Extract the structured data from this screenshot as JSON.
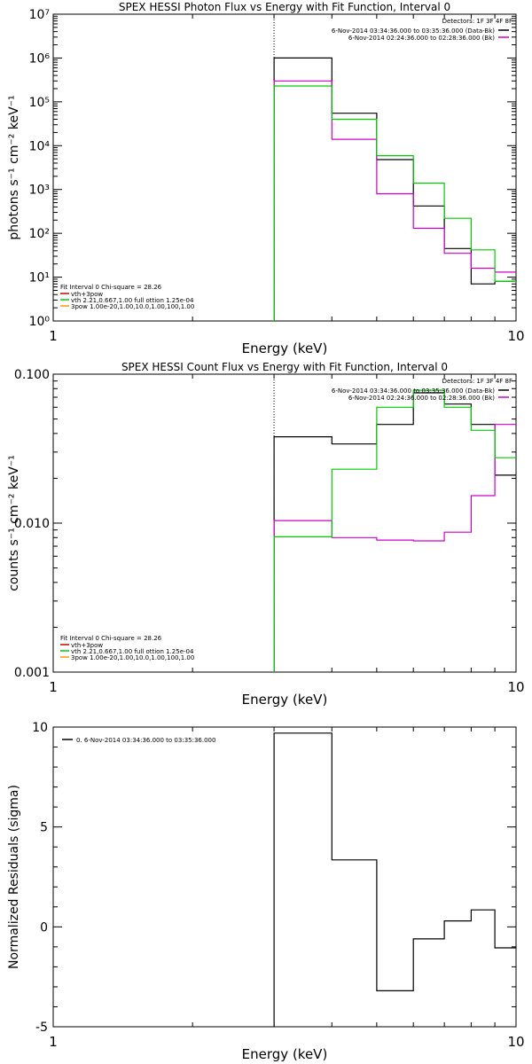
{
  "chart_data": [
    {
      "type": "line",
      "title": "SPEX HESSI Photon Flux vs Energy with Fit Function, Interval 0",
      "xlabel": "Energy (keV)",
      "ylabel": "photons s⁻¹ cm⁻² keV⁻¹",
      "xscale": "log",
      "yscale": "log",
      "xlim": [
        1,
        10
      ],
      "ylim": [
        1,
        10000000
      ],
      "x_tick_labels": [
        "1",
        "10"
      ],
      "y_tick_labels": [
        "10⁰",
        "10¹",
        "10²",
        "10³",
        "10⁴",
        "10⁵",
        "10⁶",
        "10⁷"
      ],
      "vline": 3,
      "detectors": "Detectors: 1F 3F 4F 8F",
      "legend_right": [
        {
          "text": "6-Nov-2014 03:34:36.000 to 03:35:36.000 (Data-Bk)",
          "color": "#000000"
        },
        {
          "text": "6-Nov-2014 02:24:36.000 to 02:28:36.000 (Bk)",
          "color": "#cc00cc"
        }
      ],
      "fit_info": "Fit Interval 0   Chi-square = 28.26",
      "legend_left": [
        {
          "text": "vth+3pow",
          "color": "#cc0000"
        },
        {
          "text": "vth 2.21,0.667,1.00  full ottion 1.25e-04",
          "color": "#00cc00"
        },
        {
          "text": "3pow 1.00e-20,1.00,10.0,1.00,100,1.00",
          "color": "#ff9900"
        }
      ],
      "bin_edges": [
        3,
        4,
        5,
        6,
        7,
        8,
        9,
        10
      ],
      "series": [
        {
          "color": "#000000",
          "values": [
            1000000,
            55000,
            4800,
            420,
            45,
            7,
            8
          ]
        },
        {
          "color": "#cc00cc",
          "values": [
            300000,
            14000,
            800,
            130,
            35,
            16,
            13
          ]
        },
        {
          "color": "#00cc00",
          "values": [
            230000,
            40000,
            5900,
            1400,
            220,
            42,
            8
          ]
        }
      ]
    },
    {
      "type": "line",
      "title": "SPEX HESSI Count Flux vs Energy with Fit Function, Interval 0",
      "xlabel": "Energy (keV)",
      "ylabel": "counts s⁻¹ cm⁻² keV⁻¹",
      "xscale": "log",
      "yscale": "log",
      "xlim": [
        1,
        10
      ],
      "ylim": [
        0.001,
        0.1
      ],
      "x_tick_labels": [
        "1",
        "10"
      ],
      "y_tick_labels": [
        "0.001",
        "0.010",
        "0.100"
      ],
      "vline": 3,
      "detectors": "Detectors: 1F 3F 4F 8F",
      "legend_right": [
        {
          "text": "6-Nov-2014 03:34:36.000 to 03:35:36.000 (Data-Bk)",
          "color": "#000000"
        },
        {
          "text": "6-Nov-2014 02:24:36.000 to 02:28:36.000 (Bk)",
          "color": "#cc00cc"
        }
      ],
      "fit_info": "Fit Interval 0   Chi-square = 28.26",
      "legend_left": [
        {
          "text": "vth+3pow",
          "color": "#cc0000"
        },
        {
          "text": "vth 2.21,0.667,1.00  full ottion 1.25e-04",
          "color": "#00cc00"
        },
        {
          "text": "3pow 1.00e-20,1.00,10.0,1.00,100,1.00",
          "color": "#ff9900"
        }
      ],
      "bin_edges": [
        3,
        4,
        5,
        6,
        7,
        8,
        9,
        10
      ],
      "series": [
        {
          "color": "#000000",
          "values": [
            0.038,
            0.034,
            0.046,
            0.075,
            0.063,
            0.046,
            0.021
          ]
        },
        {
          "color": "#cc00cc",
          "values": [
            0.0104,
            0.008,
            0.0077,
            0.0076,
            0.0087,
            0.0153,
            0.046
          ]
        },
        {
          "color": "#00cc00",
          "values": [
            0.0081,
            0.023,
            0.06,
            0.078,
            0.06,
            0.042,
            0.0275
          ]
        }
      ]
    },
    {
      "type": "line",
      "title": "",
      "xlabel": "Energy (keV)",
      "ylabel": "Normalized Residuals (sigma)",
      "xscale": "log",
      "yscale": "linear",
      "xlim": [
        1,
        10
      ],
      "ylim": [
        -5,
        10
      ],
      "x_tick_labels": [
        "1",
        "10"
      ],
      "y_tick_labels": [
        "-5",
        "0",
        "5",
        "10"
      ],
      "legend_right": [],
      "residual_legend": "0.  6-Nov-2014 03:34:36.000 to 03:35:36.000",
      "bin_edges": [
        3,
        4,
        5,
        6,
        7,
        8,
        9,
        10
      ],
      "series": [
        {
          "color": "#000000",
          "values": [
            9.7,
            3.35,
            -3.2,
            -0.6,
            0.3,
            0.85,
            -1.05
          ]
        }
      ]
    }
  ]
}
